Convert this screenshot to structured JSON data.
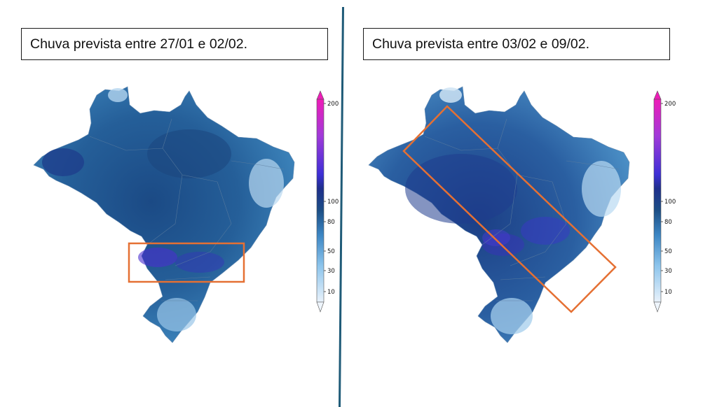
{
  "panels": [
    {
      "title": "Chuva prevista entre 27/01 e 02/02."
    },
    {
      "title": "Chuva prevista entre 03/02 e 09/02."
    }
  ],
  "legend": {
    "ticks": [
      "200",
      "100",
      "80",
      "50",
      "30",
      "10"
    ],
    "values": [
      200,
      100,
      80,
      50,
      30,
      10
    ]
  },
  "colors": {
    "highlight": "#e57033",
    "divider": "#1f5b78"
  }
}
